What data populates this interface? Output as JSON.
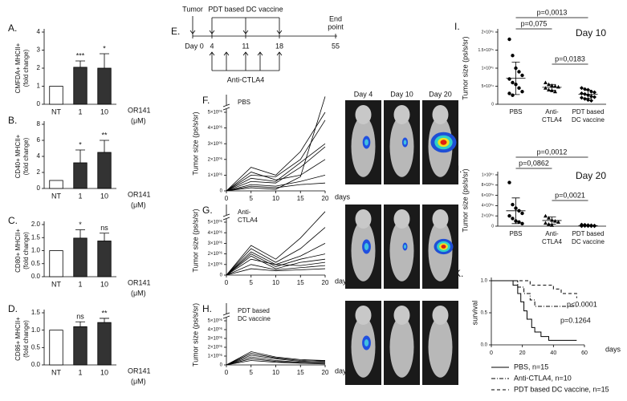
{
  "chart_data": [
    {
      "type": "bar",
      "label": "A.",
      "ylabel": [
        "CMFDA+ MHCII+",
        "(fold change)"
      ],
      "xlabel": [
        "OR141",
        "(μM)"
      ],
      "categories": [
        "NT",
        "1",
        "10"
      ],
      "values": [
        1,
        2.05,
        2.0
      ],
      "errors": [
        0,
        0.35,
        0.8
      ],
      "colors": [
        "#ffffff",
        "#333333",
        "#333333"
      ],
      "annotations": [
        null,
        "***",
        "*"
      ],
      "ylim": [
        0,
        4
      ],
      "yticks": [
        0,
        1,
        2,
        3,
        4
      ]
    },
    {
      "type": "bar",
      "label": "B.",
      "ylabel": [
        "CD40+ MHCII+",
        "(fold change)"
      ],
      "xlabel": [
        "OR141",
        "(μM)"
      ],
      "categories": [
        "NT",
        "1",
        "10"
      ],
      "values": [
        1,
        3.2,
        4.5
      ],
      "errors": [
        0,
        1.6,
        1.5
      ],
      "colors": [
        "#ffffff",
        "#333333",
        "#333333"
      ],
      "annotations": [
        null,
        "*",
        "**"
      ],
      "ylim": [
        0,
        8
      ],
      "yticks": [
        0,
        2,
        4,
        6,
        8
      ]
    },
    {
      "type": "bar",
      "label": "C.",
      "ylabel": [
        "CD80+ MHCII+",
        "(fold change)"
      ],
      "xlabel": [
        "OR141",
        "(μM)"
      ],
      "categories": [
        "NT",
        "1",
        "10"
      ],
      "values": [
        1,
        1.48,
        1.37
      ],
      "errors": [
        0,
        0.32,
        0.3
      ],
      "colors": [
        "#ffffff",
        "#333333",
        "#333333"
      ],
      "annotations": [
        null,
        "*",
        "ns"
      ],
      "ylim": [
        0,
        2
      ],
      "yticks": [
        {
          "value": 0,
          "label": "0.0"
        },
        {
          "value": 0.5,
          "label": "0.5"
        },
        {
          "value": 1,
          "label": "1.0"
        },
        {
          "value": 1.5,
          "label": "1.5"
        },
        {
          "value": 2,
          "label": "2.0"
        }
      ]
    },
    {
      "type": "bar",
      "label": "D.",
      "ylabel": [
        "CD86+ MHCII+",
        "(fold change)"
      ],
      "xlabel": [
        "OR141",
        "(μM)"
      ],
      "categories": [
        "NT",
        "1",
        "10"
      ],
      "values": [
        1,
        1.1,
        1.22
      ],
      "errors": [
        0,
        0.14,
        0.12
      ],
      "colors": [
        "#ffffff",
        "#333333",
        "#333333"
      ],
      "annotations": [
        null,
        "ns",
        "**"
      ],
      "ylim": [
        0,
        1.5
      ],
      "yticks": [
        {
          "value": 0,
          "label": "0.0"
        },
        {
          "value": 0.5,
          "label": "0.5"
        },
        {
          "value": 1,
          "label": "1.0"
        },
        {
          "value": 1.5,
          "label": "1.5"
        }
      ]
    },
    {
      "type": "line",
      "label": "F.",
      "subtitle": [
        "PBS"
      ],
      "ylabel": "Tumor size (ps/s/sr)",
      "xlabel": "days",
      "x": [
        0,
        5,
        10,
        15,
        20
      ],
      "xlim": [
        0,
        20
      ],
      "xticks": [
        0,
        5,
        10,
        15,
        20
      ],
      "ylim": [
        0,
        5000000
      ],
      "yticks": [
        0,
        {
          "value": 1000000,
          "label": "1×10⁰⁶"
        },
        {
          "value": 2000000,
          "label": "2×10⁰⁶"
        },
        {
          "value": 3000000,
          "label": "3×10⁰⁶"
        },
        {
          "value": 4000000,
          "label": "4×10⁰⁶"
        },
        {
          "value": 5000000,
          "label": "5×10⁰⁶"
        }
      ],
      "color": "#000000",
      "series": [
        {
          "values": [
            0,
            1500000,
            1000000,
            2500000,
            5000000
          ]
        },
        {
          "values": [
            0,
            1000000,
            900000,
            2000000,
            4500000
          ]
        },
        {
          "values": [
            0,
            800000,
            600000,
            1800000,
            3000000
          ]
        },
        {
          "values": [
            0,
            600000,
            500000,
            1500000,
            2800000
          ]
        },
        {
          "values": [
            0,
            1200000,
            700000,
            1000000,
            2000000
          ]
        },
        {
          "values": [
            0,
            400000,
            300000,
            600000,
            1000000
          ]
        },
        {
          "values": [
            0,
            300000,
            200000,
            400000,
            500000
          ]
        },
        {
          "values": [
            0,
            200000,
            100000,
            900000,
            6000000
          ]
        }
      ]
    },
    {
      "type": "line",
      "label": "G.",
      "subtitle": [
        "Anti-",
        "CTLA4"
      ],
      "ylabel": "Tumor size (ps/s/sr)",
      "xlabel": "days",
      "x": [
        0,
        5,
        10,
        15,
        20
      ],
      "xlim": [
        0,
        20
      ],
      "xticks": [
        0,
        5,
        10,
        15,
        20
      ],
      "ylim": [
        0,
        5000000
      ],
      "yticks": [
        0,
        {
          "value": 1000000,
          "label": "1×10⁰⁶"
        },
        {
          "value": 2000000,
          "label": "2×10⁰⁶"
        },
        {
          "value": 3000000,
          "label": "3×10⁰⁶"
        },
        {
          "value": 4000000,
          "label": "4×10⁰⁶"
        },
        {
          "value": 5000000,
          "label": "5×10⁰⁶"
        }
      ],
      "color": "#000000",
      "series": [
        {
          "values": [
            0,
            2800000,
            1500000,
            3500000,
            6000000
          ]
        },
        {
          "values": [
            0,
            2500000,
            1200000,
            2500000,
            4500000
          ]
        },
        {
          "values": [
            0,
            2200000,
            1000000,
            1800000,
            3000000
          ]
        },
        {
          "values": [
            0,
            2000000,
            800000,
            1500000,
            2000000
          ]
        },
        {
          "values": [
            0,
            1800000,
            600000,
            1200000,
            1500000
          ]
        },
        {
          "values": [
            0,
            1500000,
            1000000,
            900000,
            1200000
          ]
        },
        {
          "values": [
            0,
            1000000,
            500000,
            700000,
            900000
          ]
        },
        {
          "values": [
            0,
            600000,
            400000,
            500000,
            600000
          ]
        }
      ]
    },
    {
      "type": "line",
      "label": "H.",
      "subtitle": [
        "PDT based",
        "DC vaccine"
      ],
      "ylabel": "Tumor size (ps/s/sr)",
      "xlabel": "days",
      "x": [
        0,
        5,
        10,
        15,
        20
      ],
      "xlim": [
        0,
        20
      ],
      "xticks": [
        0,
        5,
        10,
        15,
        20
      ],
      "ylim": [
        0,
        5000000
      ],
      "yticks": [
        0,
        {
          "value": 1000000,
          "label": "1×10⁰⁶"
        },
        {
          "value": 2000000,
          "label": "2×10⁰⁶"
        },
        {
          "value": 3000000,
          "label": "3×10⁰⁶"
        },
        {
          "value": 4000000,
          "label": "4×10⁰⁶"
        },
        {
          "value": 5000000,
          "label": "5×10⁰⁶"
        }
      ],
      "color": "#000000",
      "series": [
        {
          "values": [
            0,
            1500000,
            900000,
            600000,
            500000
          ]
        },
        {
          "values": [
            0,
            1300000,
            800000,
            500000,
            400000
          ]
        },
        {
          "values": [
            0,
            1100000,
            700000,
            400000,
            500000
          ]
        },
        {
          "values": [
            0,
            900000,
            500000,
            300000,
            300000
          ]
        },
        {
          "values": [
            0,
            700000,
            400000,
            200000,
            200000
          ]
        },
        {
          "values": [
            0,
            500000,
            300000,
            200000,
            100000
          ]
        }
      ]
    },
    {
      "type": "strip",
      "label": "I.",
      "title": "Day 10",
      "ylabel": "Tumor size (ps/s/sr)",
      "categories": [
        [
          "PBS"
        ],
        [
          "Anti-",
          "CTLA4"
        ],
        [
          "PDT based",
          "DC vaccine"
        ]
      ],
      "points": [
        [
          180000,
          135000,
          100000,
          90000,
          80000,
          70000,
          60000,
          55000,
          45000,
          35000,
          30000,
          25000
        ],
        [
          60000,
          55000,
          52000,
          50000,
          48000,
          45000,
          40000,
          38000,
          35000
        ],
        [
          45000,
          42000,
          40000,
          35000,
          33000,
          30000,
          28000,
          25000,
          22000,
          20000,
          18000,
          15000,
          12000,
          10000
        ]
      ],
      "values": [
        72000,
        47000,
        28000
      ],
      "errors": [
        45000,
        8000,
        11000
      ],
      "comparisons": [
        "p=0,0013",
        "p=0,075",
        "p=0,0183"
      ],
      "ylim": [
        0,
        200000
      ],
      "yticks": [
        0,
        {
          "value": 50000,
          "label": "5×10⁰⁴"
        },
        {
          "value": 100000,
          "label": "1×10⁰⁵"
        },
        {
          "value": 150000,
          "label": "1.5×10⁰⁵"
        },
        {
          "value": 200000,
          "label": "2×10⁰⁵"
        }
      ]
    },
    {
      "type": "strip",
      "label": "J.",
      "title": "Day 20",
      "ylabel": "Tumor size (ps/s/sr)",
      "categories": [
        [
          "PBS"
        ],
        [
          "Anti-",
          "CTLA4"
        ],
        [
          "PDT based",
          "DC vaccine"
        ]
      ],
      "points": [
        [
          8500000,
          4200000,
          3500000,
          3000000,
          2500000,
          2000000,
          1500000,
          1000000,
          800000,
          500000
        ],
        [
          2000000,
          1600000,
          1200000,
          1000000,
          800000,
          600000,
          400000,
          200000
        ],
        [
          300000,
          250000,
          200000,
          150000,
          100000,
          80000,
          50000,
          30000,
          20000,
          10000,
          10000
        ]
      ],
      "values": [
        3000000,
        1100000,
        120000
      ],
      "errors": [
        2500000,
        700000,
        100000
      ],
      "comparisons": [
        "p=0,0012",
        "p=0,0862",
        "p=0,0021"
      ],
      "ylim": [
        0,
        10000000
      ],
      "yticks": [
        0,
        {
          "value": 2000000,
          "label": "2×10⁰⁶"
        },
        {
          "value": 4000000,
          "label": "4×10⁰⁶"
        },
        {
          "value": 6000000,
          "label": "6×10⁰⁶"
        },
        {
          "value": 8000000,
          "label": "8×10⁰⁶"
        },
        {
          "value": 10000000,
          "label": "1×10⁰⁷"
        }
      ]
    },
    {
      "type": "survival",
      "label": "K.",
      "ylabel": "survival",
      "xlabel": "days",
      "xlim": [
        0,
        60
      ],
      "xticks": [
        0,
        20,
        40,
        60
      ],
      "ylim": [
        0,
        1
      ],
      "yticks": [
        {
          "value": 0,
          "label": "0.0"
        },
        {
          "value": 0.5,
          "label": "0.5"
        },
        {
          "value": 1,
          "label": "1.0"
        }
      ],
      "annotations": [
        "p<0.0001",
        "p=0.1264"
      ],
      "series": [
        {
          "name": "PBS, n=15",
          "color": "#000000",
          "dash": "none",
          "x": [
            0,
            14,
            17,
            19,
            21,
            23,
            26,
            28,
            32,
            37,
            55
          ],
          "values": [
            1,
            0.93,
            0.8,
            0.67,
            0.53,
            0.4,
            0.27,
            0.2,
            0.13,
            0.07,
            0.07
          ]
        },
        {
          "name": "Anti-CTLA4, n=10",
          "color": "#000000",
          "dash": "5 2 1 2",
          "x": [
            0,
            17,
            21,
            25,
            28,
            55
          ],
          "values": [
            1,
            0.9,
            0.8,
            0.7,
            0.6,
            0.6
          ]
        },
        {
          "name": "PDT based DC vaccine, n=15",
          "color": "#000000",
          "dash": "4 3",
          "x": [
            0,
            25,
            40,
            45,
            55
          ],
          "values": [
            1,
            0.93,
            0.87,
            0.8,
            0.73
          ]
        }
      ]
    }
  ],
  "timeline": {
    "label": "E.",
    "tumor": "Tumor",
    "vaccine": "PDT based DC vaccine",
    "end": [
      "End",
      "point"
    ],
    "days": [
      {
        "value": 0,
        "label": "Day 0"
      },
      4,
      11,
      18,
      55
    ],
    "vaccine_days": [
      4,
      11,
      18
    ],
    "antibody": "Anti-CTLA4",
    "antibody_days": [
      4,
      7,
      11,
      14,
      18
    ]
  },
  "imaging": {
    "days": [
      "Day 4",
      "Day 10",
      "Day 20"
    ]
  }
}
